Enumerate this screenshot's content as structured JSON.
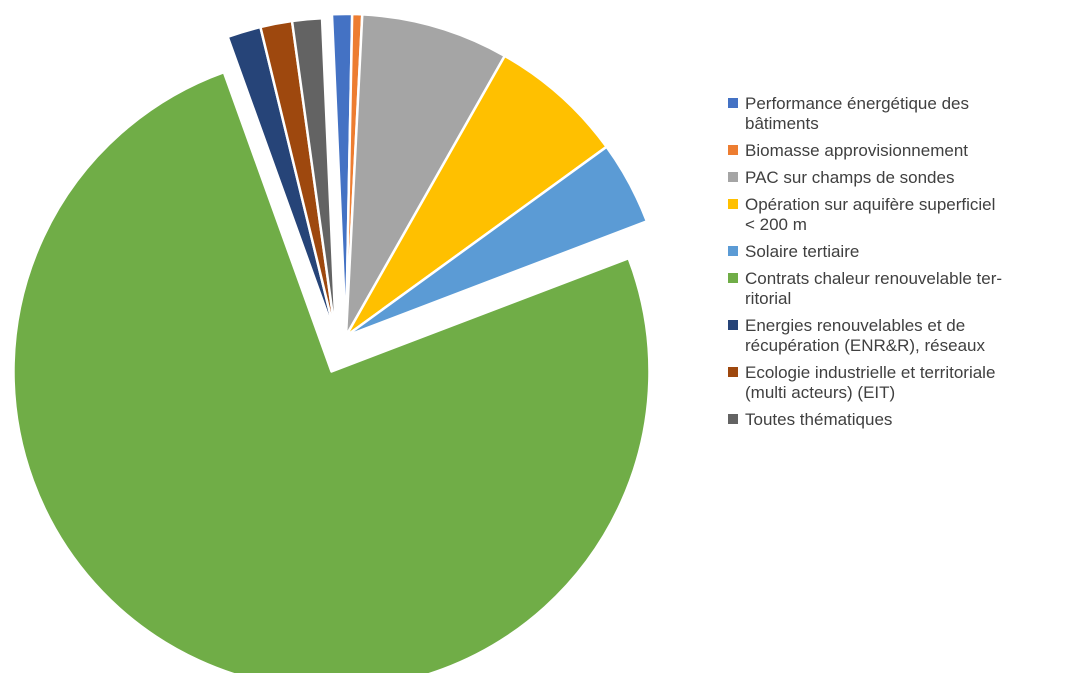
{
  "chart_data": {
    "type": "pie",
    "title": "",
    "exploded": true,
    "legend_position": "right",
    "series": [
      {
        "values": [
          1.0,
          0.5,
          7.4,
          6.8,
          4.2,
          75.3,
          1.7,
          1.6,
          1.5
        ],
        "labels": [
          "Performance énergétique des\nbâtiments",
          "Biomasse approvisionnement",
          "PAC sur champs de sondes",
          "Opération sur aquifère superficiel\n< 200 m",
          "Solaire tertiaire",
          "Contrats chaleur renouvelable ter-\nritorial",
          "Energies renouvelables et de\nrécupération (ENR&R), réseaux",
          "Ecologie industrielle et territoriale\n(multi acteurs) (EIT)",
          "Toutes thématiques"
        ],
        "colors": [
          "#4472C4",
          "#ED7D31",
          "#A5A5A5",
          "#FFC000",
          "#5B9BD5",
          "#70AD47",
          "#264478",
          "#9E480E",
          "#636363"
        ]
      }
    ]
  }
}
